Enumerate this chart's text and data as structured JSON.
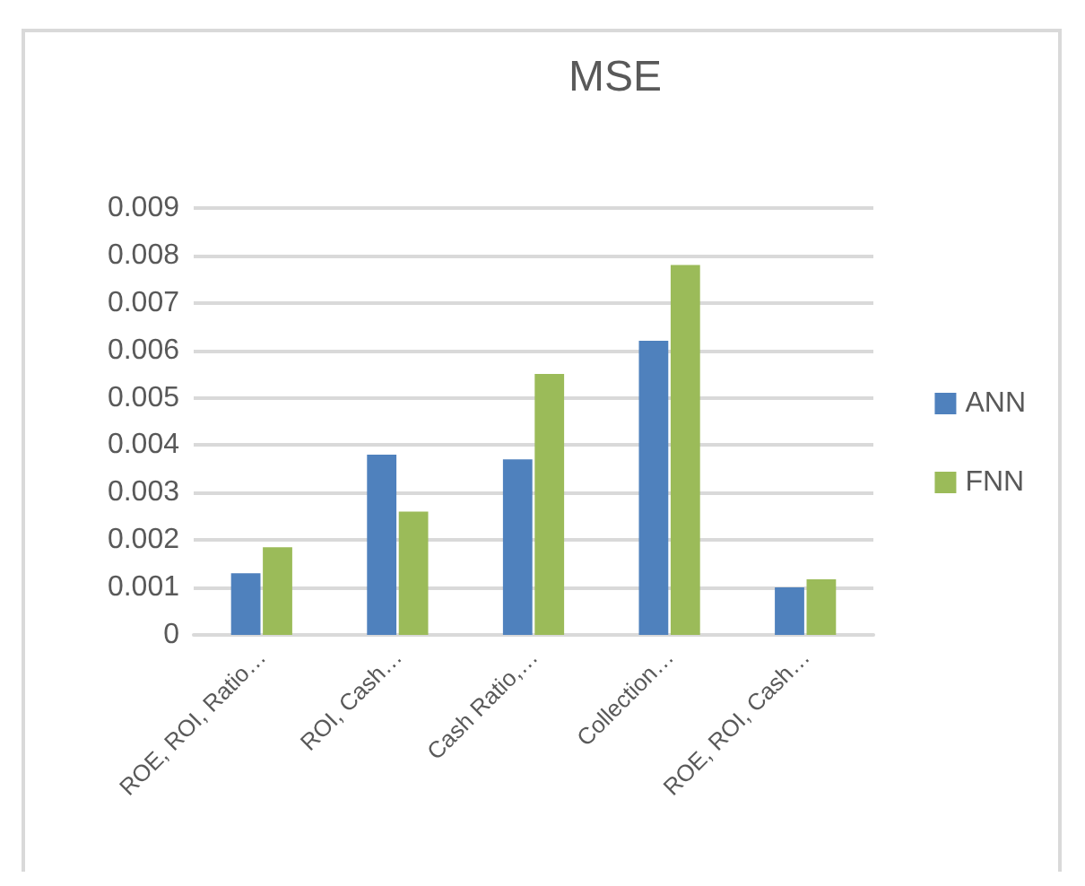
{
  "chart_data": {
    "type": "bar",
    "title": "MSE",
    "categories": [
      "ROE, ROI, Ratio…",
      "ROI, Cash…",
      "Cash Ratio,…",
      "Collection…",
      "ROE, ROI, Cash…"
    ],
    "series": [
      {
        "name": "ANN",
        "color": "#4f81bd",
        "values": [
          0.0013,
          0.0038,
          0.0037,
          0.0062,
          0.001
        ]
      },
      {
        "name": "FNN",
        "color": "#9bbb59",
        "values": [
          0.00185,
          0.0026,
          0.0055,
          0.0078,
          0.00117
        ]
      }
    ],
    "ylim": [
      0,
      0.009
    ],
    "yticks": [
      0,
      0.001,
      0.002,
      0.003,
      0.004,
      0.005,
      0.006,
      0.007,
      0.008,
      0.009
    ],
    "grid": "y",
    "legend": "right"
  }
}
